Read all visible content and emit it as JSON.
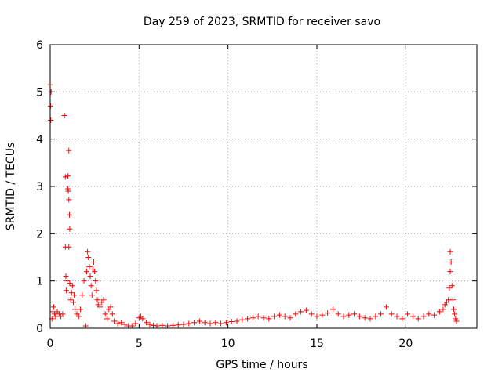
{
  "chart_data": {
    "type": "scatter",
    "title": "Day 259 of 2023, SRMTID for receiver savo",
    "xlabel": "GPS time / hours",
    "ylabel": "SRMTID / TECUs",
    "xlim": [
      0,
      24
    ],
    "ylim": [
      0,
      6
    ],
    "xticks": [
      0,
      5,
      10,
      15,
      20
    ],
    "yticks": [
      0,
      1,
      2,
      3,
      4,
      5,
      6
    ],
    "grid": true,
    "marker": "plus",
    "color": "#ff0000",
    "series": [
      {
        "name": "SRMTID",
        "points": [
          [
            0.0,
            5.15
          ],
          [
            0.02,
            4.7
          ],
          [
            0.03,
            4.4
          ],
          [
            0.05,
            5.0
          ],
          [
            0.1,
            0.2
          ],
          [
            0.15,
            0.35
          ],
          [
            0.2,
            0.45
          ],
          [
            0.25,
            0.3
          ],
          [
            0.3,
            0.25
          ],
          [
            0.4,
            0.35
          ],
          [
            0.5,
            0.3
          ],
          [
            0.6,
            0.25
          ],
          [
            0.7,
            0.3
          ],
          [
            0.8,
            4.5
          ],
          [
            0.85,
            3.2
          ],
          [
            0.85,
            1.72
          ],
          [
            0.88,
            1.1
          ],
          [
            0.9,
            0.8
          ],
          [
            0.95,
            1.0
          ],
          [
            1.0,
            3.22
          ],
          [
            1.0,
            2.95
          ],
          [
            1.02,
            2.9
          ],
          [
            1.05,
            2.72
          ],
          [
            1.05,
            3.76
          ],
          [
            1.08,
            2.4
          ],
          [
            1.1,
            2.1
          ],
          [
            1.05,
            1.72
          ],
          [
            1.1,
            0.95
          ],
          [
            1.15,
            0.6
          ],
          [
            1.2,
            0.75
          ],
          [
            1.25,
            0.9
          ],
          [
            1.3,
            0.55
          ],
          [
            1.35,
            0.7
          ],
          [
            1.4,
            0.4
          ],
          [
            1.5,
            0.3
          ],
          [
            1.6,
            0.25
          ],
          [
            1.7,
            0.4
          ],
          [
            1.8,
            0.7
          ],
          [
            1.9,
            1.0
          ],
          [
            2.0,
            0.05
          ],
          [
            2.05,
            1.2
          ],
          [
            2.1,
            1.62
          ],
          [
            2.15,
            1.5
          ],
          [
            2.2,
            1.3
          ],
          [
            2.25,
            1.1
          ],
          [
            2.3,
            0.9
          ],
          [
            2.35,
            0.7
          ],
          [
            2.4,
            1.25
          ],
          [
            2.45,
            1.4
          ],
          [
            2.5,
            1.2
          ],
          [
            2.55,
            1.0
          ],
          [
            2.6,
            0.8
          ],
          [
            2.65,
            0.6
          ],
          [
            2.7,
            0.5
          ],
          [
            2.8,
            0.45
          ],
          [
            2.9,
            0.55
          ],
          [
            3.0,
            0.6
          ],
          [
            3.1,
            0.3
          ],
          [
            3.2,
            0.2
          ],
          [
            3.3,
            0.4
          ],
          [
            3.4,
            0.45
          ],
          [
            3.5,
            0.3
          ],
          [
            3.6,
            0.15
          ],
          [
            3.8,
            0.1
          ],
          [
            4.0,
            0.12
          ],
          [
            4.2,
            0.08
          ],
          [
            4.4,
            0.05
          ],
          [
            4.6,
            0.05
          ],
          [
            4.8,
            0.1
          ],
          [
            5.0,
            0.22
          ],
          [
            5.1,
            0.25
          ],
          [
            5.2,
            0.2
          ],
          [
            5.4,
            0.12
          ],
          [
            5.6,
            0.08
          ],
          [
            5.8,
            0.06
          ],
          [
            6.0,
            0.05
          ],
          [
            6.3,
            0.06
          ],
          [
            6.6,
            0.05
          ],
          [
            6.9,
            0.06
          ],
          [
            7.2,
            0.07
          ],
          [
            7.5,
            0.08
          ],
          [
            7.8,
            0.1
          ],
          [
            8.1,
            0.12
          ],
          [
            8.4,
            0.15
          ],
          [
            8.7,
            0.12
          ],
          [
            9.0,
            0.1
          ],
          [
            9.3,
            0.12
          ],
          [
            9.6,
            0.1
          ],
          [
            9.9,
            0.12
          ],
          [
            10.2,
            0.14
          ],
          [
            10.5,
            0.15
          ],
          [
            10.8,
            0.18
          ],
          [
            11.1,
            0.2
          ],
          [
            11.4,
            0.22
          ],
          [
            11.7,
            0.25
          ],
          [
            12.0,
            0.22
          ],
          [
            12.3,
            0.2
          ],
          [
            12.6,
            0.25
          ],
          [
            12.9,
            0.28
          ],
          [
            13.2,
            0.25
          ],
          [
            13.5,
            0.22
          ],
          [
            13.8,
            0.3
          ],
          [
            14.1,
            0.35
          ],
          [
            14.4,
            0.38
          ],
          [
            14.7,
            0.3
          ],
          [
            15.0,
            0.25
          ],
          [
            15.3,
            0.28
          ],
          [
            15.6,
            0.32
          ],
          [
            15.9,
            0.4
          ],
          [
            16.2,
            0.3
          ],
          [
            16.5,
            0.25
          ],
          [
            16.8,
            0.28
          ],
          [
            17.1,
            0.3
          ],
          [
            17.4,
            0.25
          ],
          [
            17.7,
            0.22
          ],
          [
            18.0,
            0.2
          ],
          [
            18.3,
            0.25
          ],
          [
            18.6,
            0.3
          ],
          [
            18.9,
            0.45
          ],
          [
            19.2,
            0.3
          ],
          [
            19.5,
            0.25
          ],
          [
            19.8,
            0.2
          ],
          [
            20.1,
            0.3
          ],
          [
            20.4,
            0.25
          ],
          [
            20.7,
            0.2
          ],
          [
            21.0,
            0.25
          ],
          [
            21.3,
            0.3
          ],
          [
            21.6,
            0.28
          ],
          [
            21.9,
            0.35
          ],
          [
            22.1,
            0.4
          ],
          [
            22.2,
            0.5
          ],
          [
            22.3,
            0.55
          ],
          [
            22.4,
            0.6
          ],
          [
            22.45,
            0.85
          ],
          [
            22.5,
            1.2
          ],
          [
            22.5,
            1.62
          ],
          [
            22.55,
            1.4
          ],
          [
            22.6,
            0.9
          ],
          [
            22.65,
            0.6
          ],
          [
            22.7,
            0.4
          ],
          [
            22.75,
            0.3
          ],
          [
            22.8,
            0.2
          ],
          [
            22.85,
            0.15
          ]
        ]
      }
    ]
  }
}
